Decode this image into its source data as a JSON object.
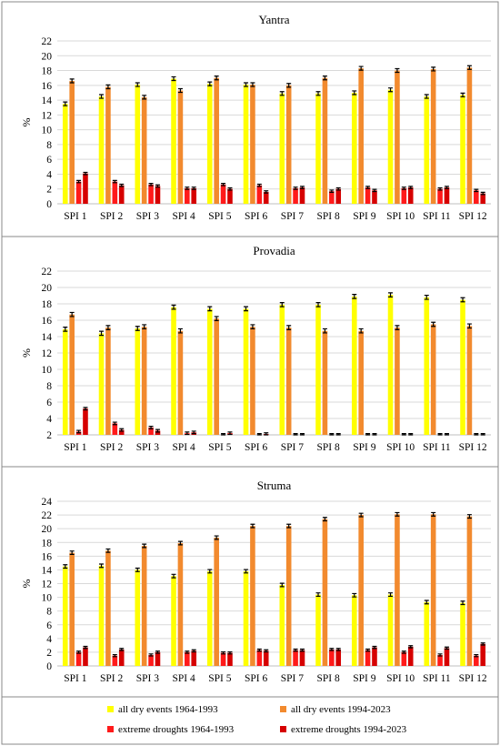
{
  "colors": {
    "all_dry_1964_1993": "#ffff00",
    "all_dry_1994_2023": "#f28a2e",
    "extreme_1964_1993": "#ff1a1a",
    "extreme_1994_2023": "#d60000"
  },
  "legend": [
    {
      "label": "all dry events 1964-1993",
      "color_key": "all_dry_1964_1993"
    },
    {
      "label": "all dry events 1994-2023",
      "color_key": "all_dry_1994_2023"
    },
    {
      "label": "extreme droughts 1964-1993",
      "color_key": "extreme_1964_1993"
    },
    {
      "label": "extreme droughts 1994-2023",
      "color_key": "extreme_1994_2023"
    }
  ],
  "chart_data": [
    {
      "type": "bar",
      "title": "Yantra",
      "xlabel": "",
      "ylabel": "%",
      "ylim": [
        0,
        22
      ],
      "yticks": [
        0,
        2,
        4,
        6,
        8,
        10,
        12,
        14,
        16,
        18,
        20,
        22
      ],
      "grid": true,
      "error_bars": true,
      "categories": [
        "SPI 1",
        "SPI 2",
        "SPI 3",
        "SPI 4",
        "SPI 5",
        "SPI 6",
        "SPI 7",
        "SPI 8",
        "SPI 9",
        "SPI 10",
        "SPI 11",
        "SPI 12"
      ],
      "series": [
        {
          "name": "all dry events 1964-1993",
          "values": [
            13.5,
            14.5,
            16.1,
            16.9,
            16.2,
            16.1,
            14.9,
            14.9,
            15.0,
            15.4,
            14.5,
            14.7
          ]
        },
        {
          "name": "all dry events 1994-2023",
          "values": [
            16.6,
            15.8,
            14.4,
            15.3,
            17.0,
            16.1,
            16.0,
            17.0,
            18.3,
            18.0,
            18.2,
            18.4
          ]
        },
        {
          "name": "extreme droughts 1964-1993",
          "values": [
            3.0,
            3.0,
            2.6,
            2.1,
            2.6,
            2.5,
            2.1,
            1.7,
            2.2,
            2.1,
            2.0,
            1.8
          ]
        },
        {
          "name": "extreme droughts 1994-2023",
          "values": [
            4.1,
            2.5,
            2.4,
            2.1,
            2.0,
            1.6,
            2.2,
            2.0,
            1.8,
            2.2,
            2.2,
            1.4
          ]
        }
      ]
    },
    {
      "type": "bar",
      "title": "Provadia",
      "xlabel": "",
      "ylabel": "%",
      "ylim": [
        2,
        22
      ],
      "yticks": [
        2,
        4,
        6,
        8,
        10,
        12,
        14,
        16,
        18,
        20,
        22
      ],
      "grid": true,
      "error_bars": true,
      "categories": [
        "SPI 1",
        "SPI 2",
        "SPI 3",
        "SPI 4",
        "SPI 5",
        "SPI 6",
        "SPI 7",
        "SPI 8",
        "SPI 9",
        "SPI 10",
        "SPI 11",
        "SPI 12"
      ],
      "series": [
        {
          "name": "all dry events 1964-1993",
          "values": [
            14.9,
            14.4,
            15.0,
            17.6,
            17.4,
            17.4,
            17.9,
            17.9,
            18.9,
            19.1,
            18.8,
            18.5
          ]
        },
        {
          "name": "all dry events 1994-2023",
          "values": [
            16.7,
            15.1,
            15.2,
            14.7,
            16.2,
            15.2,
            15.1,
            14.7,
            14.7,
            15.1,
            15.5,
            15.3
          ]
        },
        {
          "name": "extreme droughts 1964-1993",
          "values": [
            2.4,
            3.4,
            2.9,
            2.2,
            2.0,
            2.0,
            2.0,
            2.0,
            2.0,
            2.0,
            2.0,
            2.0
          ]
        },
        {
          "name": "extreme droughts 1994-2023",
          "values": [
            5.2,
            2.6,
            2.5,
            2.3,
            2.2,
            2.1,
            2.0,
            2.0,
            2.0,
            2.0,
            2.0,
            2.0
          ]
        }
      ]
    },
    {
      "type": "bar",
      "title": "Struma",
      "xlabel": "",
      "ylabel": "%",
      "ylim": [
        0,
        24
      ],
      "yticks": [
        0,
        2,
        4,
        6,
        8,
        10,
        12,
        14,
        16,
        18,
        20,
        22,
        24
      ],
      "grid": true,
      "error_bars": true,
      "categories": [
        "SPI 1",
        "SPI 2",
        "SPI 3",
        "SPI 4",
        "SPI 5",
        "SPI 6",
        "SPI 7",
        "SPI 8",
        "SPI 9",
        "SPI 10",
        "SPI 11",
        "SPI 12"
      ],
      "series": [
        {
          "name": "all dry events 1964-1993",
          "values": [
            14.5,
            14.6,
            14.0,
            13.1,
            13.8,
            13.8,
            11.8,
            10.4,
            10.3,
            10.4,
            9.3,
            9.2
          ]
        },
        {
          "name": "all dry events 1994-2023",
          "values": [
            16.5,
            16.8,
            17.5,
            17.9,
            18.7,
            20.4,
            20.4,
            21.4,
            22.0,
            22.1,
            22.1,
            21.8
          ]
        },
        {
          "name": "extreme droughts 1964-1993",
          "values": [
            2.0,
            1.5,
            1.6,
            2.0,
            1.9,
            2.3,
            2.3,
            2.4,
            2.3,
            2.0,
            1.6,
            1.5
          ]
        },
        {
          "name": "extreme droughts 1994-2023",
          "values": [
            2.7,
            2.4,
            2.0,
            2.2,
            1.9,
            2.2,
            2.3,
            2.4,
            2.7,
            2.8,
            2.6,
            3.2
          ]
        }
      ]
    }
  ]
}
